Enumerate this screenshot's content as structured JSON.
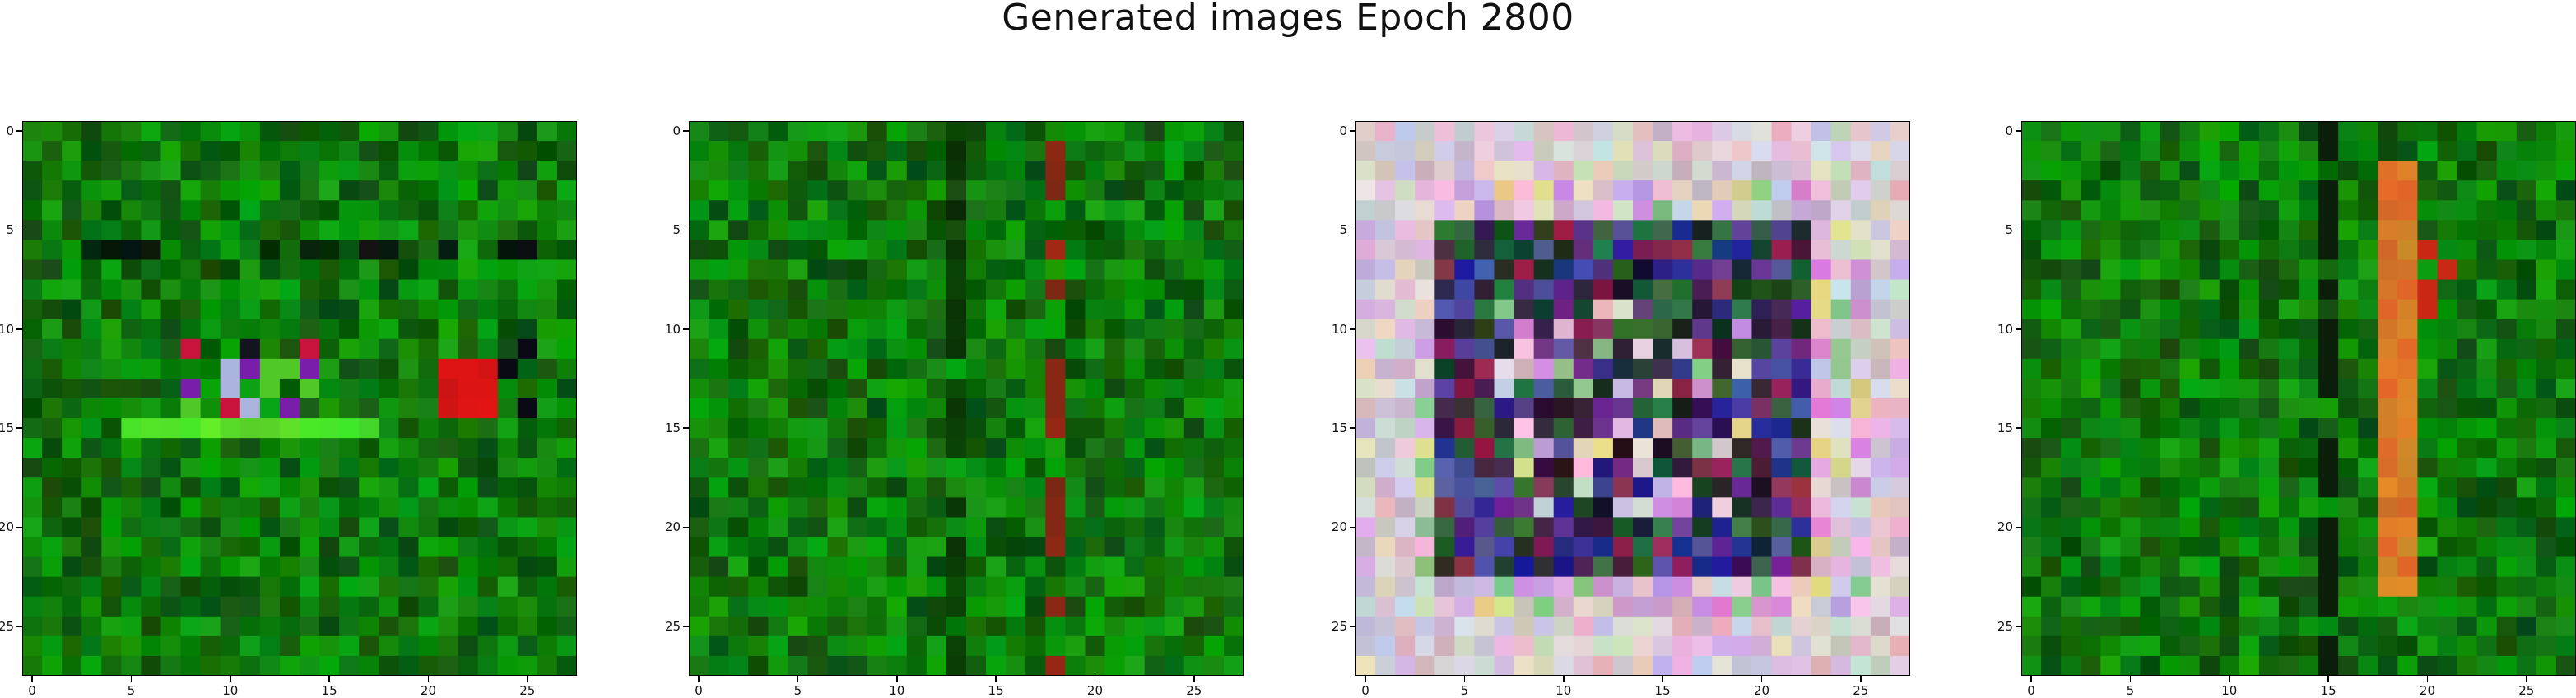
{
  "title": "Generated images Epoch 2800",
  "panels": [
    {
      "style": "green_blob"
    },
    {
      "style": "green_stripes"
    },
    {
      "style": "colorful_frame"
    },
    {
      "style": "green_orange_stripe"
    }
  ],
  "image_grid": {
    "rows": 28,
    "cols": 28
  },
  "x_ticks": [
    "0",
    "5",
    "10",
    "15",
    "20",
    "25"
  ],
  "y_ticks": [
    "0",
    "5",
    "10",
    "15",
    "20",
    "25"
  ],
  "colors": {
    "base_green": "#0b7a10",
    "frame": "#000000",
    "background": "#ffffff"
  }
}
